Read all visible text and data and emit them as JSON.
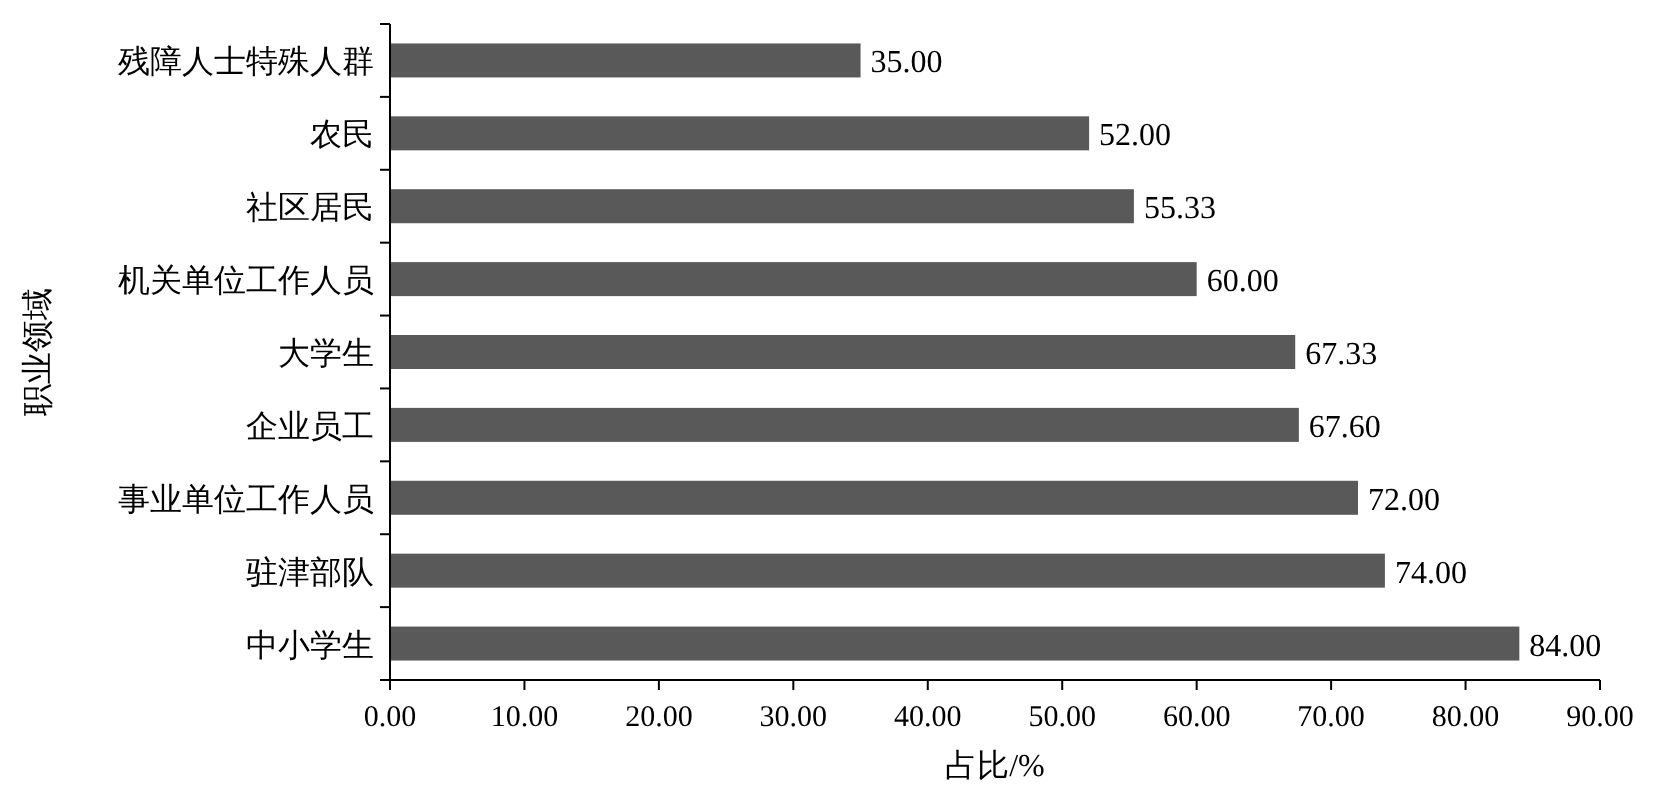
{
  "chart_data": {
    "type": "bar",
    "orientation": "horizontal",
    "categories": [
      "残障人士特殊人群",
      "农民",
      "社区居民",
      "机关单位工作人员",
      "大学生",
      "企业员工",
      "事业单位工作人员",
      "驻津部队",
      "中小学生"
    ],
    "values": [
      35.0,
      52.0,
      55.33,
      60.0,
      67.33,
      67.6,
      72.0,
      74.0,
      84.0
    ],
    "value_labels": [
      "35.00",
      "52.00",
      "55.33",
      "60.00",
      "67.33",
      "67.60",
      "72.00",
      "74.00",
      "84.00"
    ],
    "color": "#595959",
    "xlabel": "占比/%",
    "ylabel": "职业领域",
    "xlim": [
      0,
      90
    ],
    "xticks": [
      {
        "value": 0,
        "label": "0.00"
      },
      {
        "value": 10,
        "label": "10.00"
      },
      {
        "value": 20,
        "label": "20.00"
      },
      {
        "value": 30,
        "label": "30.00"
      },
      {
        "value": 40,
        "label": "40.00"
      },
      {
        "value": 50,
        "label": "50.00"
      },
      {
        "value": 60,
        "label": "60.00"
      },
      {
        "value": 70,
        "label": "70.00"
      },
      {
        "value": 80,
        "label": "80.00"
      },
      {
        "value": 90,
        "label": "90.00"
      }
    ]
  }
}
